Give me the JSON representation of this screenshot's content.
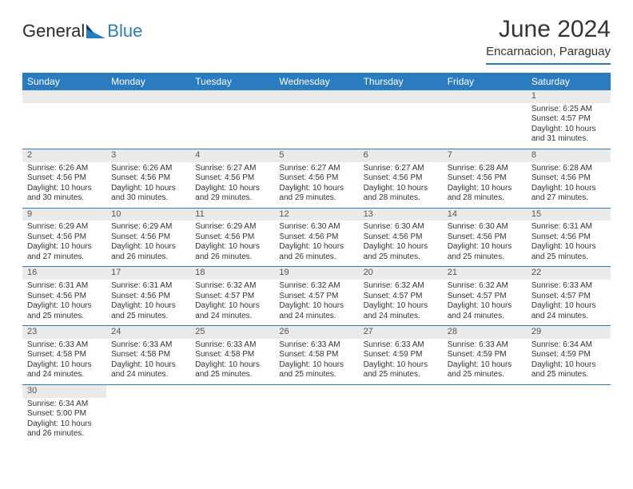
{
  "brand": {
    "part1": "General",
    "part2": "Blue"
  },
  "title": "June 2024",
  "location": "Encarnacion, Paraguay",
  "colors": {
    "accent": "#2b7bbf",
    "header_text": "#ffffff",
    "daybar_bg": "#eaeaea",
    "text": "#333333"
  },
  "weekdays": [
    "Sunday",
    "Monday",
    "Tuesday",
    "Wednesday",
    "Thursday",
    "Friday",
    "Saturday"
  ],
  "weeks": [
    [
      null,
      null,
      null,
      null,
      null,
      null,
      {
        "n": "1",
        "sr": "6:25 AM",
        "ss": "4:57 PM",
        "d": "10 hours and 31 minutes."
      }
    ],
    [
      {
        "n": "2",
        "sr": "6:26 AM",
        "ss": "4:56 PM",
        "d": "10 hours and 30 minutes."
      },
      {
        "n": "3",
        "sr": "6:26 AM",
        "ss": "4:56 PM",
        "d": "10 hours and 30 minutes."
      },
      {
        "n": "4",
        "sr": "6:27 AM",
        "ss": "4:56 PM",
        "d": "10 hours and 29 minutes."
      },
      {
        "n": "5",
        "sr": "6:27 AM",
        "ss": "4:56 PM",
        "d": "10 hours and 29 minutes."
      },
      {
        "n": "6",
        "sr": "6:27 AM",
        "ss": "4:56 PM",
        "d": "10 hours and 28 minutes."
      },
      {
        "n": "7",
        "sr": "6:28 AM",
        "ss": "4:56 PM",
        "d": "10 hours and 28 minutes."
      },
      {
        "n": "8",
        "sr": "6:28 AM",
        "ss": "4:56 PM",
        "d": "10 hours and 27 minutes."
      }
    ],
    [
      {
        "n": "9",
        "sr": "6:29 AM",
        "ss": "4:56 PM",
        "d": "10 hours and 27 minutes."
      },
      {
        "n": "10",
        "sr": "6:29 AM",
        "ss": "4:56 PM",
        "d": "10 hours and 26 minutes."
      },
      {
        "n": "11",
        "sr": "6:29 AM",
        "ss": "4:56 PM",
        "d": "10 hours and 26 minutes."
      },
      {
        "n": "12",
        "sr": "6:30 AM",
        "ss": "4:56 PM",
        "d": "10 hours and 26 minutes."
      },
      {
        "n": "13",
        "sr": "6:30 AM",
        "ss": "4:56 PM",
        "d": "10 hours and 25 minutes."
      },
      {
        "n": "14",
        "sr": "6:30 AM",
        "ss": "4:56 PM",
        "d": "10 hours and 25 minutes."
      },
      {
        "n": "15",
        "sr": "6:31 AM",
        "ss": "4:56 PM",
        "d": "10 hours and 25 minutes."
      }
    ],
    [
      {
        "n": "16",
        "sr": "6:31 AM",
        "ss": "4:56 PM",
        "d": "10 hours and 25 minutes."
      },
      {
        "n": "17",
        "sr": "6:31 AM",
        "ss": "4:56 PM",
        "d": "10 hours and 25 minutes."
      },
      {
        "n": "18",
        "sr": "6:32 AM",
        "ss": "4:57 PM",
        "d": "10 hours and 24 minutes."
      },
      {
        "n": "19",
        "sr": "6:32 AM",
        "ss": "4:57 PM",
        "d": "10 hours and 24 minutes."
      },
      {
        "n": "20",
        "sr": "6:32 AM",
        "ss": "4:57 PM",
        "d": "10 hours and 24 minutes."
      },
      {
        "n": "21",
        "sr": "6:32 AM",
        "ss": "4:57 PM",
        "d": "10 hours and 24 minutes."
      },
      {
        "n": "22",
        "sr": "6:33 AM",
        "ss": "4:57 PM",
        "d": "10 hours and 24 minutes."
      }
    ],
    [
      {
        "n": "23",
        "sr": "6:33 AM",
        "ss": "4:58 PM",
        "d": "10 hours and 24 minutes."
      },
      {
        "n": "24",
        "sr": "6:33 AM",
        "ss": "4:58 PM",
        "d": "10 hours and 24 minutes."
      },
      {
        "n": "25",
        "sr": "6:33 AM",
        "ss": "4:58 PM",
        "d": "10 hours and 25 minutes."
      },
      {
        "n": "26",
        "sr": "6:33 AM",
        "ss": "4:58 PM",
        "d": "10 hours and 25 minutes."
      },
      {
        "n": "27",
        "sr": "6:33 AM",
        "ss": "4:59 PM",
        "d": "10 hours and 25 minutes."
      },
      {
        "n": "28",
        "sr": "6:33 AM",
        "ss": "4:59 PM",
        "d": "10 hours and 25 minutes."
      },
      {
        "n": "29",
        "sr": "6:34 AM",
        "ss": "4:59 PM",
        "d": "10 hours and 25 minutes."
      }
    ],
    [
      {
        "n": "30",
        "sr": "6:34 AM",
        "ss": "5:00 PM",
        "d": "10 hours and 26 minutes."
      },
      null,
      null,
      null,
      null,
      null,
      null
    ]
  ],
  "labels": {
    "sunrise": "Sunrise:",
    "sunset": "Sunset:",
    "daylight": "Daylight:"
  }
}
